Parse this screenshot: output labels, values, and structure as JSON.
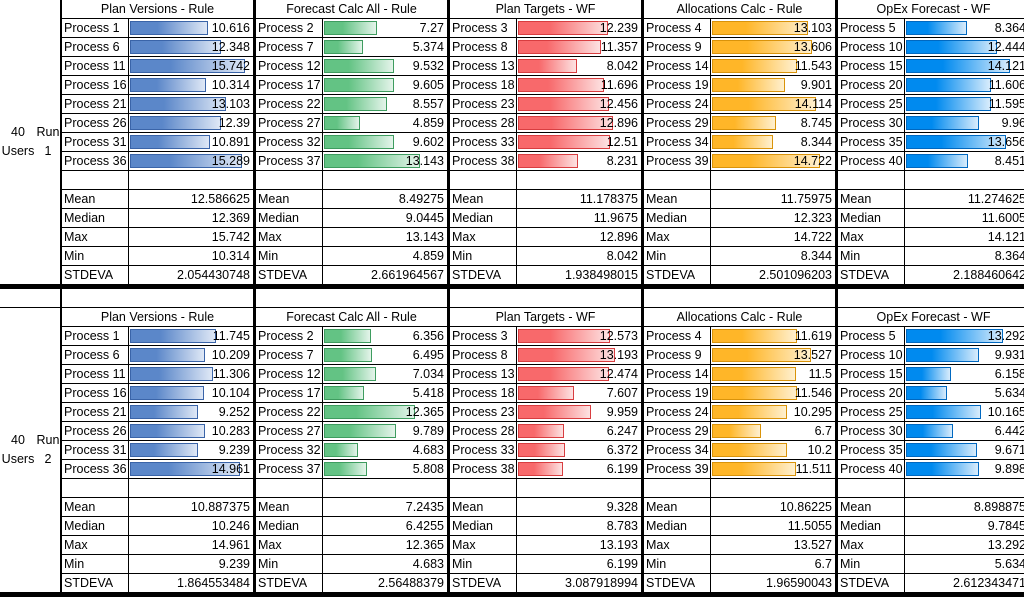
{
  "colors": {
    "blue": {
      "fill": "#5b87c9",
      "light": "#dfe8f6",
      "edge": "#3a64a8"
    },
    "green": {
      "fill": "#63c384",
      "light": "#e4f4ea",
      "edge": "#3e9c5f"
    },
    "red": {
      "fill": "#f8696b",
      "light": "#fde2e2",
      "edge": "#d83d40"
    },
    "orange": {
      "fill": "#ffb628",
      "light": "#fff0cf",
      "edge": "#d9930a"
    },
    "skyblue": {
      "fill": "#008aef",
      "light": "#d8ecfc",
      "edge": "#0068c0"
    }
  },
  "stat_labels": [
    "Mean",
    "Median",
    "Max",
    "Min",
    "STDEVA"
  ],
  "runs": [
    {
      "label_line1": "40 Users",
      "label_line2": "Run 1",
      "panels": [
        {
          "title": "Plan Versions - Rule",
          "color": "blue",
          "processes": [
            "Process 1",
            "Process 6",
            "Process 11",
            "Process 16",
            "Process 21",
            "Process 26",
            "Process 31",
            "Process 36"
          ],
          "values": [
            "10.616",
            "12.348",
            "15.742",
            "10.314",
            "13.103",
            "12.39",
            "10.891",
            "15.289"
          ],
          "stats": [
            "12.586625",
            "12.369",
            "15.742",
            "10.314",
            "2.054430748"
          ]
        },
        {
          "title": "Forecast Calc All - Rule",
          "color": "green",
          "processes": [
            "Process 2",
            "Process 7",
            "Process 12",
            "Process 17",
            "Process 22",
            "Process 27",
            "Process 32",
            "Process 37"
          ],
          "values": [
            "7.27",
            "5.374",
            "9.532",
            "9.605",
            "8.557",
            "4.859",
            "9.602",
            "13.143"
          ],
          "stats": [
            "8.49275",
            "9.0445",
            "13.143",
            "4.859",
            "2.661964567"
          ]
        },
        {
          "title": "Plan Targets - WF",
          "color": "red",
          "processes": [
            "Process 3",
            "Process 8",
            "Process 13",
            "Process 18",
            "Process 23",
            "Process 28",
            "Process 33",
            "Process 38"
          ],
          "values": [
            "12.239",
            "11.357",
            "8.042",
            "11.696",
            "12.456",
            "12.896",
            "12.51",
            "8.231"
          ],
          "stats": [
            "11.178375",
            "11.9675",
            "12.896",
            "8.042",
            "1.938498015"
          ]
        },
        {
          "title": "Allocations Calc - Rule",
          "color": "orange",
          "processes": [
            "Process 4",
            "Process 9",
            "Process 14",
            "Process 19",
            "Process 24",
            "Process 29",
            "Process 34",
            "Process 39"
          ],
          "values": [
            "13.103",
            "13.606",
            "11.543",
            "9.901",
            "14.114",
            "8.745",
            "8.344",
            "14.722"
          ],
          "stats": [
            "11.75975",
            "12.323",
            "14.722",
            "8.344",
            "2.501096203"
          ]
        },
        {
          "title": "OpEx Forecast - WF",
          "color": "skyblue",
          "processes": [
            "Process 5",
            "Process 10",
            "Process 15",
            "Process 20",
            "Process 25",
            "Process 30",
            "Process 35",
            "Process 40"
          ],
          "values": [
            "8.364",
            "12.444",
            "14.121",
            "11.606",
            "11.595",
            "9.96",
            "13.656",
            "8.451"
          ],
          "stats": [
            "11.274625",
            "11.6005",
            "14.121",
            "8.364",
            "2.188460642"
          ]
        }
      ]
    },
    {
      "label_line1": "40 Users",
      "label_line2": "Run 2",
      "panels": [
        {
          "title": "Plan Versions - Rule",
          "color": "blue",
          "processes": [
            "Process 1",
            "Process 6",
            "Process 11",
            "Process 16",
            "Process 21",
            "Process 26",
            "Process 31",
            "Process 36"
          ],
          "values": [
            "11.745",
            "10.209",
            "11.306",
            "10.104",
            "9.252",
            "10.283",
            "9.239",
            "14.961"
          ],
          "stats": [
            "10.887375",
            "10.246",
            "14.961",
            "9.239",
            "1.864553484"
          ]
        },
        {
          "title": "Forecast Calc All - Rule",
          "color": "green",
          "processes": [
            "Process 2",
            "Process 7",
            "Process 12",
            "Process 17",
            "Process 22",
            "Process 27",
            "Process 32",
            "Process 37"
          ],
          "values": [
            "6.356",
            "6.495",
            "7.034",
            "5.418",
            "12.365",
            "9.789",
            "4.683",
            "5.808"
          ],
          "stats": [
            "7.2435",
            "6.4255",
            "12.365",
            "4.683",
            "2.56488379"
          ]
        },
        {
          "title": "Plan Targets - WF",
          "color": "red",
          "processes": [
            "Process 3",
            "Process 8",
            "Process 13",
            "Process 18",
            "Process 23",
            "Process 28",
            "Process 33",
            "Process 38"
          ],
          "values": [
            "12.573",
            "13.193",
            "12.474",
            "7.607",
            "9.959",
            "6.247",
            "6.372",
            "6.199"
          ],
          "stats": [
            "9.328",
            "8.783",
            "13.193",
            "6.199",
            "3.087918994"
          ]
        },
        {
          "title": "Allocations Calc - Rule",
          "color": "orange",
          "processes": [
            "Process 4",
            "Process 9",
            "Process 14",
            "Process 19",
            "Process 24",
            "Process 29",
            "Process 34",
            "Process 39"
          ],
          "values": [
            "11.619",
            "13.527",
            "11.5",
            "11.546",
            "10.295",
            "6.7",
            "10.2",
            "11.511"
          ],
          "stats": [
            "10.86225",
            "11.5055",
            "13.527",
            "6.7",
            "1.96590043"
          ]
        },
        {
          "title": "OpEx Forecast - WF",
          "color": "skyblue",
          "processes": [
            "Process 5",
            "Process 10",
            "Process 15",
            "Process 20",
            "Process 25",
            "Process 30",
            "Process 35",
            "Process 40"
          ],
          "values": [
            "13.292",
            "9.931",
            "6.158",
            "5.634",
            "10.165",
            "6.442",
            "9.671",
            "9.898"
          ],
          "stats": [
            "8.898875",
            "9.7845",
            "13.292",
            "5.634",
            "2.612343471"
          ]
        }
      ]
    }
  ]
}
